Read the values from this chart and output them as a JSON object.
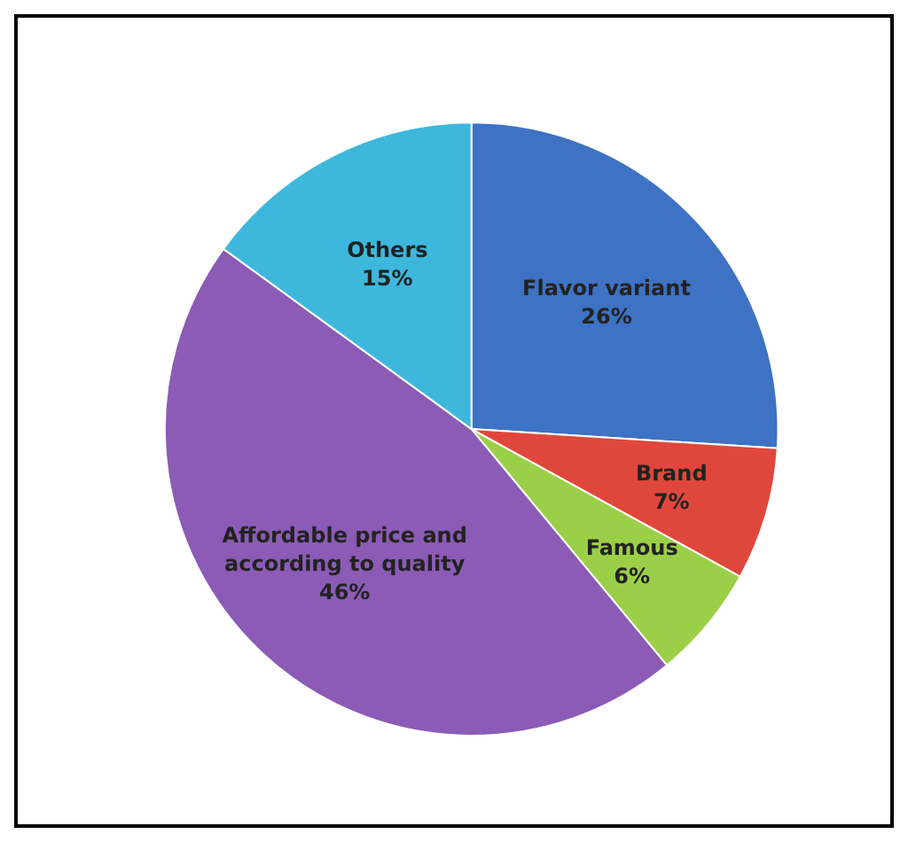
{
  "chart_data": {
    "type": "pie",
    "categories": [
      "Flavor variant",
      "Brand",
      "Famous",
      "Affordable price and\naccording to quality",
      "Others"
    ],
    "values": [
      26,
      7,
      6,
      46,
      15
    ],
    "colors": [
      "#3d72c4",
      "#e0473c",
      "#9ccf48",
      "#8b5bb6",
      "#3db8dc"
    ],
    "value_labels": [
      "26%",
      "7%",
      "6%",
      "46%",
      "15%"
    ]
  }
}
